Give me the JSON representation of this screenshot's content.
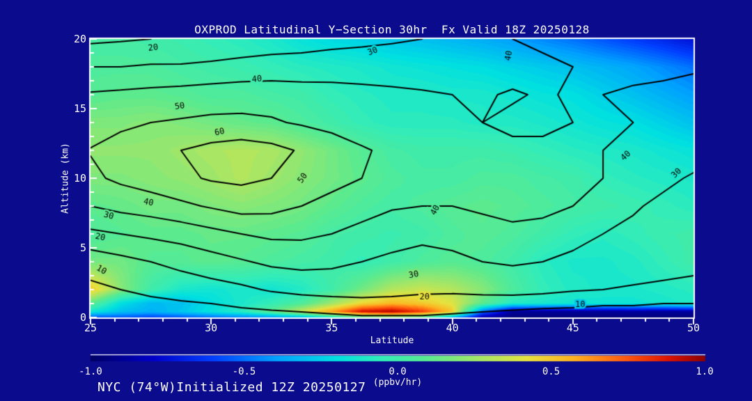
{
  "title": "OXPROD Latitudinal Y−Section 30hr  Fx Valid 18Z 20250128",
  "footer": "NYC (74°W)Initialized 12Z 20250127",
  "colors": {
    "background": "#0b0b8e",
    "text": "#ffffff",
    "axis": "#ffffff",
    "contour_line": "#000000"
  },
  "axes": {
    "x": {
      "label": "Latitude",
      "min": 25,
      "max": 50,
      "major_ticks": [
        25,
        30,
        35,
        40,
        45,
        50
      ],
      "minor_step": 1
    },
    "y": {
      "label": "Altitude (km)",
      "min": 0,
      "max": 20,
      "major_ticks": [
        0,
        5,
        10,
        15,
        20
      ],
      "minor_step": 1
    }
  },
  "colorbar": {
    "min": -1,
    "max": 1,
    "tick_labels": [
      "-1.0",
      "-0.5",
      "0.0",
      "0.5",
      "1.0"
    ],
    "unit": "(ppbv/hr)",
    "stops": [
      [
        0,
        "#000064"
      ],
      [
        0.1,
        "#0000c8"
      ],
      [
        0.2,
        "#0040ff"
      ],
      [
        0.3,
        "#00a0ff"
      ],
      [
        0.4,
        "#00e0e0"
      ],
      [
        0.47,
        "#30ecba"
      ],
      [
        0.55,
        "#5cea8e"
      ],
      [
        0.63,
        "#a2e668"
      ],
      [
        0.71,
        "#e6e23e"
      ],
      [
        0.79,
        "#ffae1e"
      ],
      [
        0.87,
        "#ff5a10"
      ],
      [
        0.94,
        "#dc1400"
      ],
      [
        1,
        "#8c0000"
      ]
    ]
  },
  "chart_data": {
    "type": "heatmap",
    "title": "OXPROD Latitudinal Y−Section 30hr  Fx Valid 18Z 20250128",
    "xlabel": "Latitude",
    "ylabel": "Altitude (km)",
    "xlim": [
      25,
      50
    ],
    "ylim": [
      0,
      20
    ],
    "fill_units": "(ppbv/hr)",
    "fill_range": [
      -1,
      1
    ],
    "lat_points": [
      25,
      26.25,
      27.5,
      28.75,
      30,
      31.25,
      32.5,
      33.75,
      35,
      36.25,
      37.5,
      38.75,
      40,
      41.25,
      42.5,
      43.75,
      45,
      46.25,
      47.5,
      48.75,
      50
    ],
    "alt_points": [
      0,
      0.4,
      1,
      2,
      4,
      6,
      8,
      10,
      12,
      14,
      16,
      18,
      20
    ],
    "fill_grid": [
      [
        -0.55,
        -0.55,
        -0.6,
        -0.55,
        -0.5,
        -0.45,
        -0.4,
        -0.3,
        -0.1,
        0.1,
        0.2,
        0.1,
        -0.3,
        -0.85,
        -0.95,
        -0.95,
        -0.95,
        -0.95,
        -0.95,
        -0.95,
        -0.95
      ],
      [
        -0.15,
        -0.3,
        -0.35,
        -0.28,
        -0.18,
        -0.08,
        0.1,
        0.35,
        0.6,
        0.9,
        0.95,
        0.8,
        0.5,
        -0.5,
        -0.9,
        -0.9,
        -0.9,
        -0.9,
        -0.88,
        -0.9,
        -0.88
      ],
      [
        0.1,
        -0.2,
        -0.32,
        -0.3,
        -0.2,
        -0.12,
        -0.05,
        0.05,
        0.25,
        0.45,
        0.55,
        0.5,
        0.4,
        0.1,
        -0.1,
        -0.12,
        -0.15,
        -0.15,
        -0.15,
        -0.13,
        -0.1
      ],
      [
        0.5,
        0.2,
        0.0,
        -0.12,
        -0.15,
        -0.12,
        -0.15,
        -0.1,
        0.0,
        0.15,
        0.3,
        0.35,
        0.3,
        0.2,
        0.05,
        -0.05,
        -0.1,
        -0.12,
        -0.12,
        -0.1,
        -0.08
      ],
      [
        0.15,
        0.15,
        0.08,
        0.08,
        0.1,
        0.08,
        0.05,
        0.02,
        0.0,
        -0.05,
        0.0,
        0.05,
        0.08,
        0.05,
        0.0,
        -0.08,
        -0.12,
        -0.12,
        -0.1,
        -0.05,
        0.0
      ],
      [
        0.05,
        0.08,
        0.1,
        0.1,
        0.12,
        0.12,
        0.1,
        0.08,
        0.02,
        0.0,
        -0.02,
        0.0,
        0.05,
        0.08,
        0.05,
        0.0,
        -0.05,
        -0.08,
        -0.05,
        -0.02,
        0.0
      ],
      [
        0.1,
        0.12,
        0.15,
        0.15,
        0.18,
        0.2,
        0.18,
        0.15,
        0.1,
        0.05,
        0.02,
        0.05,
        0.08,
        0.1,
        0.08,
        0.05,
        0.02,
        0.0,
        -0.02,
        -0.05,
        -0.08
      ],
      [
        0.18,
        0.18,
        0.2,
        0.22,
        0.25,
        0.3,
        0.25,
        0.2,
        0.15,
        0.1,
        0.05,
        0.02,
        0.02,
        0.05,
        0.05,
        0.02,
        0.0,
        -0.05,
        -0.08,
        -0.1,
        -0.12
      ],
      [
        0.22,
        0.22,
        0.22,
        0.25,
        0.28,
        0.3,
        0.28,
        0.22,
        0.15,
        0.08,
        0.02,
        0.0,
        0.0,
        0.0,
        -0.02,
        -0.05,
        -0.08,
        -0.1,
        -0.12,
        -0.15,
        -0.18
      ],
      [
        0.18,
        0.18,
        0.2,
        0.18,
        0.15,
        0.12,
        0.1,
        0.05,
        0.0,
        -0.05,
        -0.08,
        -0.08,
        -0.08,
        -0.1,
        -0.1,
        -0.12,
        -0.15,
        -0.18,
        -0.2,
        -0.25,
        -0.3
      ],
      [
        0.08,
        0.1,
        0.1,
        0.08,
        0.05,
        0.05,
        0.02,
        0.0,
        -0.05,
        -0.08,
        -0.1,
        -0.1,
        -0.12,
        -0.12,
        -0.15,
        -0.18,
        -0.2,
        -0.25,
        -0.3,
        -0.35,
        -0.4
      ],
      [
        0.05,
        0.05,
        0.05,
        0.02,
        0.0,
        -0.02,
        -0.05,
        -0.08,
        -0.1,
        -0.12,
        -0.15,
        -0.17,
        -0.19,
        -0.21,
        -0.24,
        -0.27,
        -0.3,
        -0.34,
        -0.38,
        -0.44,
        -0.5
      ],
      [
        0.02,
        0.02,
        0.0,
        -0.02,
        -0.05,
        -0.08,
        -0.12,
        -0.18,
        -0.22,
        -0.25,
        -0.28,
        -0.3,
        -0.33,
        -0.36,
        -0.4,
        -0.45,
        -0.5,
        -0.56,
        -0.62,
        -0.68,
        -0.75
      ]
    ],
    "contour_levels": [
      10,
      20,
      30,
      40,
      50,
      60
    ],
    "contour_grid": [
      [
        2,
        3,
        3,
        4,
        5,
        6,
        7,
        8,
        8,
        9,
        9,
        9,
        8,
        7,
        6,
        5,
        5,
        4,
        4,
        3,
        3
      ],
      [
        3,
        4,
        5,
        6,
        7,
        8,
        9,
        10,
        11,
        12,
        12,
        12,
        11,
        10,
        9,
        8,
        8,
        7,
        7,
        6,
        6
      ],
      [
        5,
        6,
        8,
        9,
        10,
        12,
        14,
        15,
        16,
        17,
        17,
        16,
        15,
        15,
        14,
        13,
        12,
        11,
        11,
        10,
        10
      ],
      [
        8,
        10,
        12,
        14,
        16,
        18,
        21,
        23,
        24,
        24,
        23,
        22,
        22,
        23,
        24,
        23,
        21,
        20,
        19,
        18,
        17
      ],
      [
        14,
        17,
        20,
        23,
        26,
        29,
        32,
        33,
        32,
        30,
        28,
        27,
        28,
        30,
        31,
        30,
        28,
        26,
        25,
        24,
        23
      ],
      [
        28,
        30,
        32,
        34,
        37,
        40,
        42,
        42,
        40,
        37,
        34,
        32,
        33,
        35,
        37,
        36,
        33,
        30,
        28,
        26,
        25
      ],
      [
        40,
        43,
        45,
        48,
        51,
        54,
        53,
        50,
        47,
        44,
        41,
        40,
        40,
        42,
        44,
        43,
        40,
        35,
        31,
        28,
        26
      ],
      [
        48,
        52,
        55,
        58,
        61,
        62,
        60,
        57,
        53,
        50,
        47,
        46,
        45,
        46,
        48,
        47,
        44,
        40,
        36,
        32,
        29
      ],
      [
        50.5,
        54,
        57,
        60,
        63,
        65,
        63,
        59,
        55,
        51,
        48,
        45,
        43,
        42,
        41,
        41,
        41,
        40,
        38,
        36,
        34
      ],
      [
        45,
        48,
        50,
        51,
        52,
        52,
        51,
        49,
        47,
        45,
        44,
        42,
        41,
        40,
        39,
        39,
        40,
        40.5,
        40,
        38.5,
        39
      ],
      [
        41,
        42,
        43,
        44,
        45,
        46,
        46,
        45,
        44,
        43,
        42,
        41,
        40,
        39.5,
        40.5,
        39.5,
        40.5,
        40,
        39,
        38,
        37
      ],
      [
        30,
        30,
        31,
        31,
        32,
        33,
        34,
        34,
        35,
        35,
        35,
        35,
        36,
        37,
        38,
        39,
        40,
        41,
        42,
        42,
        41
      ],
      [
        18,
        19,
        20,
        21,
        22,
        24,
        25,
        26,
        27,
        28,
        29,
        30,
        33,
        38,
        40,
        41,
        42,
        43,
        43,
        44,
        44
      ]
    ],
    "contour_labels": [
      {
        "text": "20",
        "lat": 27.6,
        "alt": 19.35,
        "rot": -8
      },
      {
        "text": "30",
        "lat": 36.7,
        "alt": 19.1,
        "rot": -22
      },
      {
        "text": "40",
        "lat": 31.9,
        "alt": 17.1,
        "rot": -5
      },
      {
        "text": "50",
        "lat": 28.7,
        "alt": 15.15,
        "rot": -8
      },
      {
        "text": "60",
        "lat": 30.35,
        "alt": 13.3,
        "rot": -12
      },
      {
        "text": "50",
        "lat": 33.8,
        "alt": 10.0,
        "rot": -55
      },
      {
        "text": "40",
        "lat": 42.35,
        "alt": 18.8,
        "rot": -80
      },
      {
        "text": "40",
        "lat": 47.2,
        "alt": 11.6,
        "rot": -42
      },
      {
        "text": "30",
        "lat": 49.3,
        "alt": 10.35,
        "rot": -45
      },
      {
        "text": "40",
        "lat": 27.4,
        "alt": 8.25,
        "rot": 12
      },
      {
        "text": "30",
        "lat": 25.75,
        "alt": 7.3,
        "rot": 14
      },
      {
        "text": "20",
        "lat": 25.4,
        "alt": 5.75,
        "rot": 12
      },
      {
        "text": "10",
        "lat": 25.45,
        "alt": 3.4,
        "rot": 30
      },
      {
        "text": "40",
        "lat": 39.3,
        "alt": 7.7,
        "rot": -62
      },
      {
        "text": "30",
        "lat": 38.4,
        "alt": 3.05,
        "rot": -10
      },
      {
        "text": "20",
        "lat": 38.85,
        "alt": 1.45,
        "rot": 0
      },
      {
        "text": "10",
        "lat": 45.3,
        "alt": 0.9,
        "rot": 0
      }
    ]
  }
}
